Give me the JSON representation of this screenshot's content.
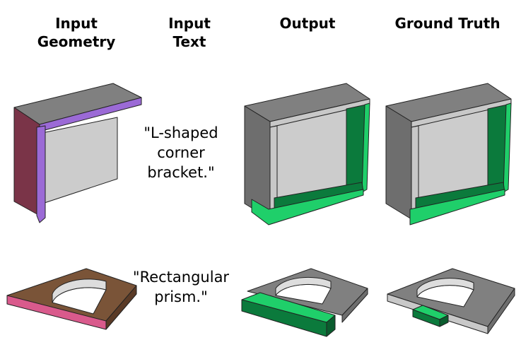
{
  "headers": {
    "input_geometry": "Input\nGeometry",
    "input_text": "Input\nText",
    "output": "Output",
    "ground_truth": "Ground Truth"
  },
  "rows": [
    {
      "caption": "\"L-shaped\ncorner\nbracket.\""
    },
    {
      "caption": "\"Rectangular\nprism.\""
    }
  ],
  "colors": {
    "gray_top": "#808080",
    "gray_side": "#6e6e6e",
    "light_gray": "#c8c8c8",
    "panel": "#cccccc",
    "purple": "#9b6ad6",
    "maroon": "#7a3448",
    "green": "#1fcf6a",
    "dark_green": "#0b7a3c",
    "brown": "#7a5438",
    "pink": "#d95a8c"
  }
}
